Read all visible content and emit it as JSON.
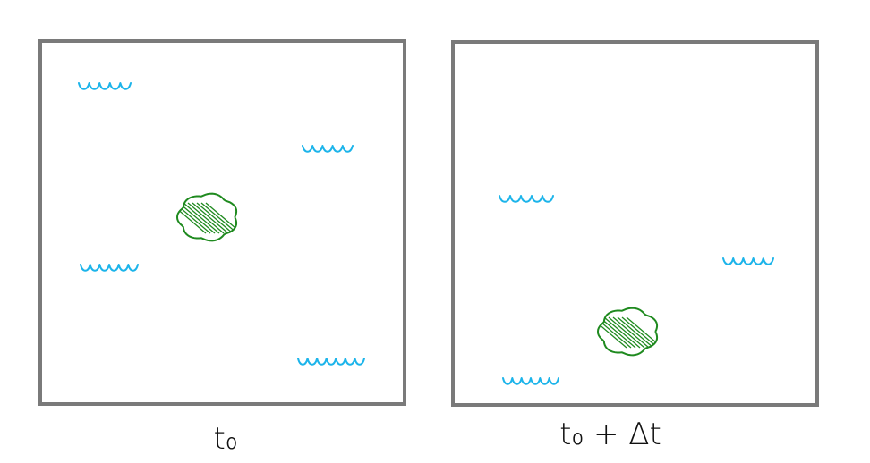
{
  "panels": [
    {
      "label": "t₀"
    },
    {
      "label": "t₀ + Δt"
    }
  ]
}
